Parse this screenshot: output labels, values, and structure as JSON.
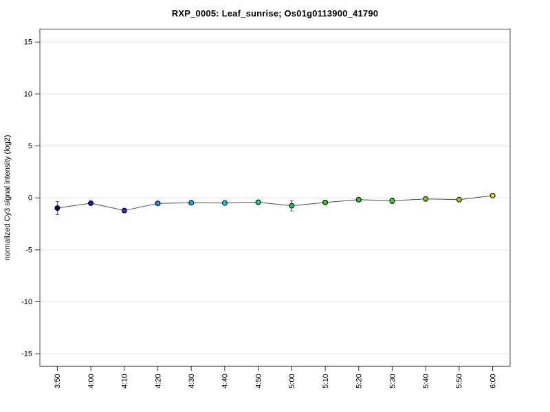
{
  "chart_data": {
    "type": "line",
    "title": "RXP_0005: Leaf_sunrise; Os01g0113900_41790",
    "xlabel": "",
    "ylabel": "normalized Cy3 signal intensity (log2)",
    "x_tick_labels": [
      "3:50",
      "4:00",
      "4:10",
      "4:20",
      "4:30",
      "4:40",
      "4:50",
      "5:00",
      "5:10",
      "5:20",
      "5:30",
      "5:40",
      "5:50",
      "6:00"
    ],
    "y_ticks": [
      -15,
      -10,
      -5,
      0,
      5,
      10,
      15
    ],
    "ylim": [
      -16.2,
      16.25
    ],
    "grid": true,
    "legend": "none",
    "series": [
      {
        "name": "signal",
        "values": [
          -0.98,
          -0.51,
          -1.22,
          -0.53,
          -0.47,
          -0.49,
          -0.42,
          -0.76,
          -0.44,
          -0.17,
          -0.28,
          -0.1,
          -0.17,
          0.22
        ],
        "errors": [
          0.62,
          0,
          0,
          0,
          0,
          0,
          0,
          0.5,
          0,
          0,
          0.26,
          0,
          0,
          0
        ],
        "point_colors": [
          "#00008B",
          "#1717C4",
          "#2A2AD0",
          "#1E86E0",
          "#00B4DC",
          "#00CED1",
          "#00D39A",
          "#00C75A",
          "#22CB22",
          "#32CD32",
          "#44CC17",
          "#76CC00",
          "#A6CE00",
          "#E8D800"
        ]
      }
    ],
    "colors": {
      "line": "#4a4a4a",
      "gridline": "#e4e4e4",
      "box": "#4d4d4d",
      "tick": "#333333",
      "error_bar": "#555555",
      "point_stroke": "#000000",
      "text": "#000000"
    }
  }
}
